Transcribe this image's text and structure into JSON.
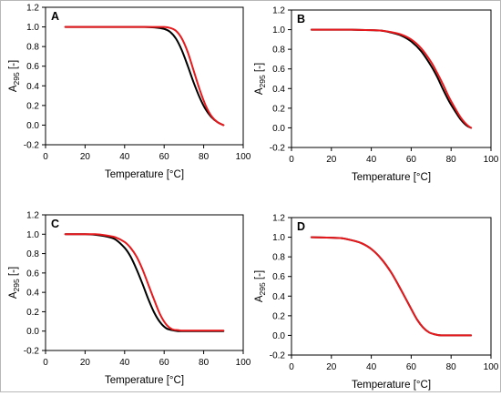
{
  "chart_data": [
    {
      "panel": "A",
      "type": "line",
      "xlabel": "Temperature [°C]",
      "ylabel": {
        "main": "A",
        "sub": "295",
        "suffix": " [-]"
      },
      "xlim": [
        0,
        100
      ],
      "ylim": [
        -0.2,
        1.2
      ],
      "xticks": [
        0,
        20,
        40,
        60,
        80,
        100
      ],
      "yticks": [
        -0.2,
        0.0,
        0.2,
        0.4,
        0.6,
        0.8,
        1.0,
        1.2
      ],
      "grid": false,
      "series": [
        {
          "color": "#000000",
          "x": [
            10,
            20,
            30,
            40,
            50,
            55,
            60,
            63,
            66,
            69,
            72,
            75,
            78,
            81,
            84,
            87,
            90
          ],
          "y": [
            1.0,
            1.0,
            1.0,
            1.0,
            1.0,
            0.995,
            0.98,
            0.95,
            0.88,
            0.76,
            0.6,
            0.43,
            0.28,
            0.16,
            0.08,
            0.03,
            0.0
          ]
        },
        {
          "color": "#e8191c",
          "x": [
            10,
            20,
            30,
            40,
            50,
            55,
            60,
            63,
            66,
            69,
            72,
            75,
            78,
            81,
            84,
            87,
            90
          ],
          "y": [
            1.0,
            1.0,
            1.0,
            1.0,
            1.0,
            1.0,
            1.0,
            0.99,
            0.96,
            0.88,
            0.74,
            0.55,
            0.36,
            0.2,
            0.09,
            0.03,
            0.0
          ]
        }
      ]
    },
    {
      "panel": "B",
      "type": "line",
      "xlabel": "Temperature [°C]",
      "ylabel": {
        "main": "A",
        "sub": "295",
        "suffix": " [-]"
      },
      "xlim": [
        0,
        100
      ],
      "ylim": [
        -0.2,
        1.2
      ],
      "xticks": [
        0,
        20,
        40,
        60,
        80,
        100
      ],
      "yticks": [
        -0.2,
        0.0,
        0.2,
        0.4,
        0.6,
        0.8,
        1.0,
        1.2
      ],
      "grid": false,
      "series": [
        {
          "color": "#000000",
          "x": [
            10,
            20,
            30,
            40,
            45,
            50,
            55,
            60,
            65,
            70,
            73,
            76,
            79,
            82,
            85,
            88,
            90
          ],
          "y": [
            1.0,
            1.0,
            1.0,
            0.995,
            0.99,
            0.97,
            0.94,
            0.88,
            0.78,
            0.63,
            0.52,
            0.39,
            0.27,
            0.17,
            0.08,
            0.02,
            0.0
          ]
        },
        {
          "color": "#e8191c",
          "x": [
            10,
            20,
            30,
            40,
            45,
            50,
            55,
            60,
            65,
            70,
            73,
            76,
            79,
            82,
            85,
            88,
            90
          ],
          "y": [
            1.0,
            1.0,
            1.0,
            0.995,
            0.99,
            0.975,
            0.95,
            0.9,
            0.81,
            0.67,
            0.56,
            0.44,
            0.31,
            0.2,
            0.1,
            0.03,
            0.0
          ]
        }
      ]
    },
    {
      "panel": "C",
      "type": "line",
      "xlabel": "Temperature [°C]",
      "ylabel": {
        "main": "A",
        "sub": "295",
        "suffix": " [-]"
      },
      "xlim": [
        0,
        100
      ],
      "ylim": [
        -0.2,
        1.2
      ],
      "xticks": [
        0,
        20,
        40,
        60,
        80,
        100
      ],
      "yticks": [
        -0.2,
        0.0,
        0.2,
        0.4,
        0.6,
        0.8,
        1.0,
        1.2
      ],
      "grid": false,
      "series": [
        {
          "color": "#000000",
          "x": [
            10,
            20,
            25,
            30,
            35,
            40,
            43,
            46,
            49,
            52,
            55,
            58,
            61,
            64,
            67,
            70,
            80,
            90
          ],
          "y": [
            1.0,
            1.0,
            0.995,
            0.98,
            0.95,
            0.86,
            0.77,
            0.64,
            0.49,
            0.33,
            0.19,
            0.09,
            0.03,
            0.01,
            0.0,
            0.0,
            0.0,
            0.0
          ]
        },
        {
          "color": "#e8191c",
          "x": [
            10,
            20,
            25,
            30,
            35,
            40,
            43,
            46,
            49,
            52,
            55,
            58,
            61,
            64,
            67,
            70,
            80,
            90
          ],
          "y": [
            1.0,
            1.0,
            1.0,
            0.99,
            0.97,
            0.92,
            0.86,
            0.77,
            0.64,
            0.48,
            0.32,
            0.17,
            0.07,
            0.02,
            0.01,
            0.005,
            0.005,
            0.005
          ]
        }
      ]
    },
    {
      "panel": "D",
      "type": "line",
      "xlabel": "Temperature [°C]",
      "ylabel": {
        "main": "A",
        "sub": "295",
        "suffix": " [-]"
      },
      "xlim": [
        0,
        100
      ],
      "ylim": [
        -0.2,
        1.2
      ],
      "xticks": [
        0,
        20,
        40,
        60,
        80,
        100
      ],
      "yticks": [
        -0.2,
        0.0,
        0.2,
        0.4,
        0.6,
        0.8,
        1.0,
        1.2
      ],
      "grid": false,
      "series": [
        {
          "color": "#000000",
          "x": [
            10,
            20,
            25,
            30,
            35,
            40,
            45,
            50,
            55,
            60,
            63,
            66,
            69,
            72,
            75,
            80,
            90
          ],
          "y": [
            1.0,
            0.995,
            0.99,
            0.97,
            0.94,
            0.88,
            0.78,
            0.64,
            0.46,
            0.27,
            0.16,
            0.08,
            0.03,
            0.01,
            0.0,
            0.0,
            0.0
          ]
        },
        {
          "color": "#e8191c",
          "x": [
            10,
            20,
            25,
            30,
            35,
            40,
            45,
            50,
            55,
            60,
            63,
            66,
            69,
            72,
            75,
            80,
            90
          ],
          "y": [
            1.0,
            0.995,
            0.99,
            0.97,
            0.94,
            0.88,
            0.78,
            0.64,
            0.46,
            0.27,
            0.16,
            0.08,
            0.03,
            0.01,
            0.0,
            0.0,
            0.0
          ]
        }
      ]
    }
  ]
}
